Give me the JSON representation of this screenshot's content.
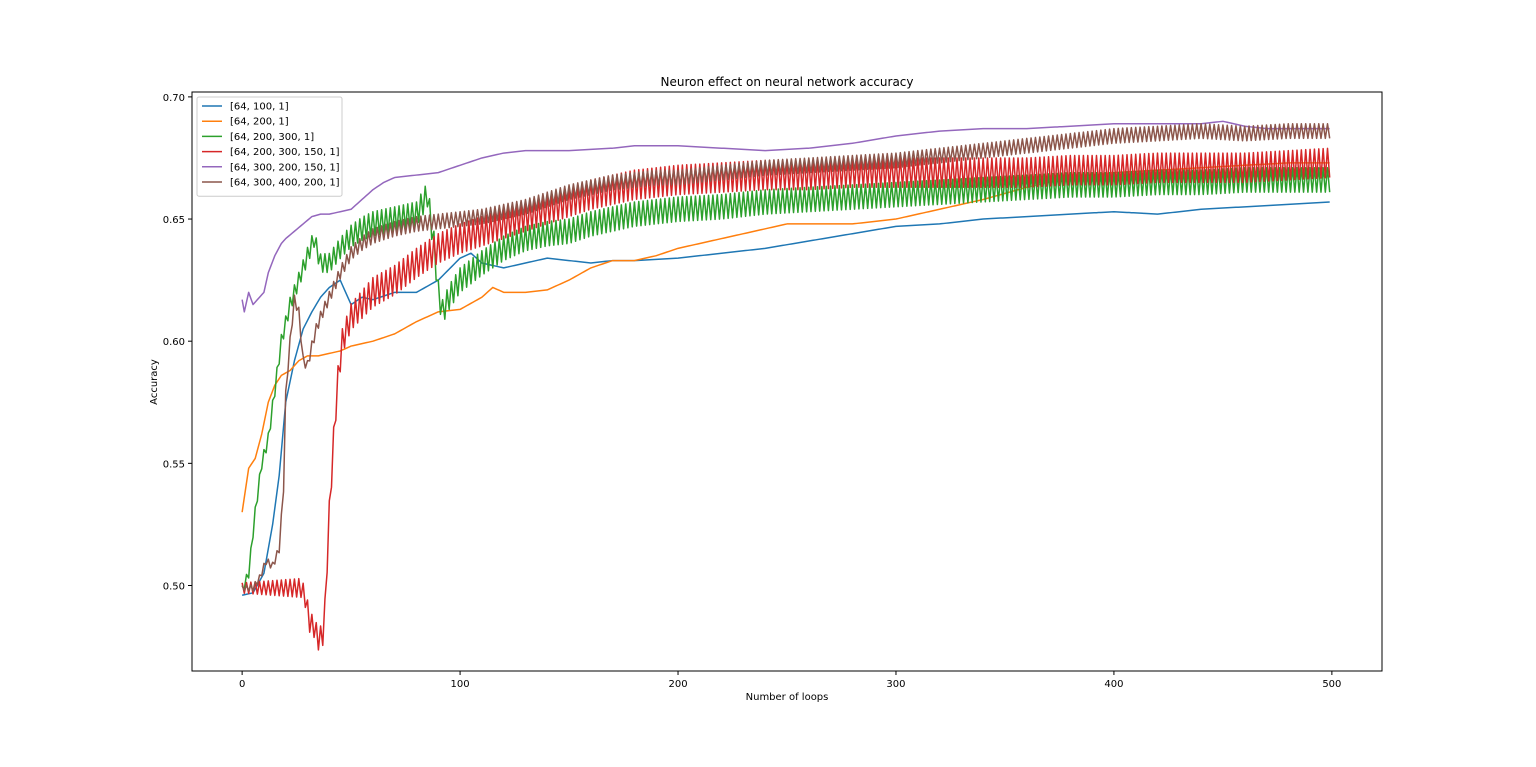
{
  "chart_data": {
    "type": "line",
    "title": "Neuron effect on neural network accuracy",
    "xlabel": "Number of loops",
    "ylabel": "Accuracy",
    "xlim": [
      -23,
      523
    ],
    "ylim": [
      0.465,
      0.702
    ],
    "xticks": [
      0,
      100,
      200,
      300,
      400,
      500
    ],
    "xtick_labels": [
      "0",
      "100",
      "200",
      "300",
      "400",
      "500"
    ],
    "yticks": [
      0.5,
      0.55,
      0.6,
      0.65,
      0.7
    ],
    "ytick_labels": [
      "0.50",
      "0.55",
      "0.60",
      "0.65",
      "0.70"
    ],
    "grid": false,
    "legend_position": "upper-left",
    "series": [
      {
        "name": "[64, 100, 1]",
        "color": "#1f77b4",
        "oscillation": 0.0,
        "points": [
          [
            0,
            0.496
          ],
          [
            5,
            0.497
          ],
          [
            10,
            0.505
          ],
          [
            14,
            0.525
          ],
          [
            17,
            0.545
          ],
          [
            20,
            0.575
          ],
          [
            24,
            0.592
          ],
          [
            28,
            0.605
          ],
          [
            32,
            0.612
          ],
          [
            36,
            0.618
          ],
          [
            40,
            0.622
          ],
          [
            45,
            0.625
          ],
          [
            50,
            0.615
          ],
          [
            55,
            0.618
          ],
          [
            60,
            0.617
          ],
          [
            70,
            0.62
          ],
          [
            80,
            0.62
          ],
          [
            90,
            0.625
          ],
          [
            100,
            0.634
          ],
          [
            105,
            0.636
          ],
          [
            110,
            0.632
          ],
          [
            120,
            0.63
          ],
          [
            130,
            0.632
          ],
          [
            140,
            0.634
          ],
          [
            150,
            0.633
          ],
          [
            160,
            0.632
          ],
          [
            170,
            0.633
          ],
          [
            180,
            0.633
          ],
          [
            200,
            0.634
          ],
          [
            220,
            0.636
          ],
          [
            240,
            0.638
          ],
          [
            260,
            0.641
          ],
          [
            280,
            0.644
          ],
          [
            300,
            0.647
          ],
          [
            320,
            0.648
          ],
          [
            340,
            0.65
          ],
          [
            360,
            0.651
          ],
          [
            380,
            0.652
          ],
          [
            400,
            0.653
          ],
          [
            420,
            0.652
          ],
          [
            440,
            0.654
          ],
          [
            460,
            0.655
          ],
          [
            480,
            0.656
          ],
          [
            499,
            0.657
          ]
        ]
      },
      {
        "name": "[64, 200, 1]",
        "color": "#ff7f0e",
        "oscillation": 0.0,
        "points": [
          [
            0,
            0.53
          ],
          [
            3,
            0.548
          ],
          [
            6,
            0.552
          ],
          [
            9,
            0.562
          ],
          [
            12,
            0.575
          ],
          [
            15,
            0.582
          ],
          [
            18,
            0.586
          ],
          [
            22,
            0.588
          ],
          [
            26,
            0.592
          ],
          [
            30,
            0.594
          ],
          [
            35,
            0.594
          ],
          [
            40,
            0.595
          ],
          [
            45,
            0.596
          ],
          [
            50,
            0.598
          ],
          [
            60,
            0.6
          ],
          [
            70,
            0.603
          ],
          [
            80,
            0.608
          ],
          [
            90,
            0.612
          ],
          [
            100,
            0.613
          ],
          [
            110,
            0.618
          ],
          [
            115,
            0.622
          ],
          [
            120,
            0.62
          ],
          [
            130,
            0.62
          ],
          [
            140,
            0.621
          ],
          [
            150,
            0.625
          ],
          [
            160,
            0.63
          ],
          [
            170,
            0.633
          ],
          [
            180,
            0.633
          ],
          [
            190,
            0.635
          ],
          [
            200,
            0.638
          ],
          [
            220,
            0.642
          ],
          [
            240,
            0.646
          ],
          [
            250,
            0.648
          ],
          [
            260,
            0.648
          ],
          [
            280,
            0.648
          ],
          [
            300,
            0.65
          ],
          [
            320,
            0.654
          ],
          [
            340,
            0.658
          ],
          [
            360,
            0.663
          ],
          [
            380,
            0.667
          ],
          [
            400,
            0.669
          ],
          [
            420,
            0.67
          ],
          [
            440,
            0.671
          ],
          [
            460,
            0.672
          ],
          [
            480,
            0.673
          ],
          [
            499,
            0.673
          ]
        ]
      },
      {
        "name": "[64, 200, 300, 1]",
        "color": "#2ca02c",
        "oscillation": 0.005,
        "points": [
          [
            0,
            0.498
          ],
          [
            3,
            0.505
          ],
          [
            6,
            0.53
          ],
          [
            9,
            0.55
          ],
          [
            12,
            0.56
          ],
          [
            15,
            0.58
          ],
          [
            18,
            0.6
          ],
          [
            22,
            0.615
          ],
          [
            26,
            0.625
          ],
          [
            30,
            0.635
          ],
          [
            33,
            0.642
          ],
          [
            36,
            0.632
          ],
          [
            40,
            0.632
          ],
          [
            45,
            0.638
          ],
          [
            50,
            0.643
          ],
          [
            55,
            0.646
          ],
          [
            60,
            0.648
          ],
          [
            70,
            0.65
          ],
          [
            80,
            0.652
          ],
          [
            85,
            0.66
          ],
          [
            88,
            0.64
          ],
          [
            90,
            0.62
          ],
          [
            92,
            0.612
          ],
          [
            95,
            0.618
          ],
          [
            100,
            0.625
          ],
          [
            110,
            0.632
          ],
          [
            120,
            0.638
          ],
          [
            130,
            0.642
          ],
          [
            140,
            0.644
          ],
          [
            150,
            0.645
          ],
          [
            160,
            0.648
          ],
          [
            170,
            0.65
          ],
          [
            180,
            0.652
          ],
          [
            200,
            0.654
          ],
          [
            220,
            0.655
          ],
          [
            240,
            0.657
          ],
          [
            260,
            0.658
          ],
          [
            280,
            0.659
          ],
          [
            300,
            0.66
          ],
          [
            320,
            0.661
          ],
          [
            340,
            0.662
          ],
          [
            360,
            0.663
          ],
          [
            380,
            0.664
          ],
          [
            400,
            0.664
          ],
          [
            420,
            0.665
          ],
          [
            440,
            0.665
          ],
          [
            460,
            0.666
          ],
          [
            480,
            0.666
          ],
          [
            499,
            0.666
          ]
        ]
      },
      {
        "name": "[64, 200, 300, 150, 1]",
        "color": "#d62728",
        "oscillation": 0.006,
        "points": [
          [
            0,
            0.499
          ],
          [
            10,
            0.499
          ],
          [
            20,
            0.499
          ],
          [
            27,
            0.499
          ],
          [
            29,
            0.495
          ],
          [
            31,
            0.485
          ],
          [
            33,
            0.483
          ],
          [
            35,
            0.478
          ],
          [
            37,
            0.48
          ],
          [
            38,
            0.49
          ],
          [
            39,
            0.51
          ],
          [
            40,
            0.53
          ],
          [
            42,
            0.56
          ],
          [
            44,
            0.585
          ],
          [
            46,
            0.6
          ],
          [
            50,
            0.61
          ],
          [
            55,
            0.615
          ],
          [
            60,
            0.62
          ],
          [
            70,
            0.625
          ],
          [
            80,
            0.632
          ],
          [
            90,
            0.638
          ],
          [
            100,
            0.642
          ],
          [
            110,
            0.645
          ],
          [
            120,
            0.648
          ],
          [
            130,
            0.651
          ],
          [
            140,
            0.654
          ],
          [
            150,
            0.657
          ],
          [
            160,
            0.66
          ],
          [
            170,
            0.662
          ],
          [
            180,
            0.664
          ],
          [
            190,
            0.665
          ],
          [
            200,
            0.666
          ],
          [
            220,
            0.667
          ],
          [
            240,
            0.668
          ],
          [
            260,
            0.668
          ],
          [
            280,
            0.669
          ],
          [
            300,
            0.669
          ],
          [
            320,
            0.669
          ],
          [
            340,
            0.669
          ],
          [
            360,
            0.669
          ],
          [
            380,
            0.67
          ],
          [
            400,
            0.67
          ],
          [
            420,
            0.671
          ],
          [
            440,
            0.671
          ],
          [
            460,
            0.671
          ],
          [
            480,
            0.672
          ],
          [
            499,
            0.673
          ]
        ]
      },
      {
        "name": "[64, 300, 200, 150, 1]",
        "color": "#9467bd",
        "oscillation": 0.0,
        "points": [
          [
            0,
            0.617
          ],
          [
            1,
            0.612
          ],
          [
            3,
            0.62
          ],
          [
            5,
            0.615
          ],
          [
            8,
            0.618
          ],
          [
            10,
            0.62
          ],
          [
            12,
            0.628
          ],
          [
            15,
            0.635
          ],
          [
            18,
            0.64
          ],
          [
            20,
            0.642
          ],
          [
            24,
            0.645
          ],
          [
            28,
            0.648
          ],
          [
            32,
            0.651
          ],
          [
            36,
            0.652
          ],
          [
            40,
            0.652
          ],
          [
            45,
            0.653
          ],
          [
            50,
            0.654
          ],
          [
            55,
            0.658
          ],
          [
            60,
            0.662
          ],
          [
            65,
            0.665
          ],
          [
            70,
            0.667
          ],
          [
            80,
            0.668
          ],
          [
            90,
            0.669
          ],
          [
            100,
            0.672
          ],
          [
            110,
            0.675
          ],
          [
            120,
            0.677
          ],
          [
            130,
            0.678
          ],
          [
            150,
            0.678
          ],
          [
            170,
            0.679
          ],
          [
            180,
            0.68
          ],
          [
            200,
            0.68
          ],
          [
            220,
            0.679
          ],
          [
            240,
            0.678
          ],
          [
            260,
            0.679
          ],
          [
            280,
            0.681
          ],
          [
            300,
            0.684
          ],
          [
            320,
            0.686
          ],
          [
            340,
            0.687
          ],
          [
            360,
            0.687
          ],
          [
            380,
            0.688
          ],
          [
            400,
            0.689
          ],
          [
            420,
            0.689
          ],
          [
            440,
            0.689
          ],
          [
            450,
            0.69
          ],
          [
            460,
            0.688
          ],
          [
            470,
            0.687
          ],
          [
            480,
            0.687
          ],
          [
            499,
            0.687
          ]
        ]
      },
      {
        "name": "[64, 300, 400, 200, 1]",
        "color": "#8c564b",
        "oscillation": 0.003,
        "points": [
          [
            0,
            0.499
          ],
          [
            5,
            0.499
          ],
          [
            8,
            0.503
          ],
          [
            11,
            0.51
          ],
          [
            14,
            0.508
          ],
          [
            17,
            0.515
          ],
          [
            19,
            0.54
          ],
          [
            20,
            0.578
          ],
          [
            22,
            0.6
          ],
          [
            24,
            0.617
          ],
          [
            26,
            0.612
          ],
          [
            28,
            0.592
          ],
          [
            30,
            0.59
          ],
          [
            32,
            0.598
          ],
          [
            34,
            0.605
          ],
          [
            36,
            0.61
          ],
          [
            40,
            0.618
          ],
          [
            45,
            0.628
          ],
          [
            50,
            0.636
          ],
          [
            55,
            0.64
          ],
          [
            60,
            0.643
          ],
          [
            70,
            0.646
          ],
          [
            80,
            0.648
          ],
          [
            90,
            0.649
          ],
          [
            100,
            0.65
          ],
          [
            110,
            0.651
          ],
          [
            120,
            0.653
          ],
          [
            130,
            0.655
          ],
          [
            140,
            0.658
          ],
          [
            150,
            0.661
          ],
          [
            160,
            0.663
          ],
          [
            170,
            0.665
          ],
          [
            180,
            0.666
          ],
          [
            190,
            0.667
          ],
          [
            200,
            0.667
          ],
          [
            220,
            0.669
          ],
          [
            240,
            0.671
          ],
          [
            260,
            0.672
          ],
          [
            280,
            0.673
          ],
          [
            300,
            0.674
          ],
          [
            320,
            0.676
          ],
          [
            340,
            0.678
          ],
          [
            360,
            0.68
          ],
          [
            380,
            0.682
          ],
          [
            400,
            0.684
          ],
          [
            420,
            0.685
          ],
          [
            440,
            0.686
          ],
          [
            460,
            0.685
          ],
          [
            480,
            0.686
          ],
          [
            499,
            0.686
          ]
        ]
      }
    ]
  }
}
